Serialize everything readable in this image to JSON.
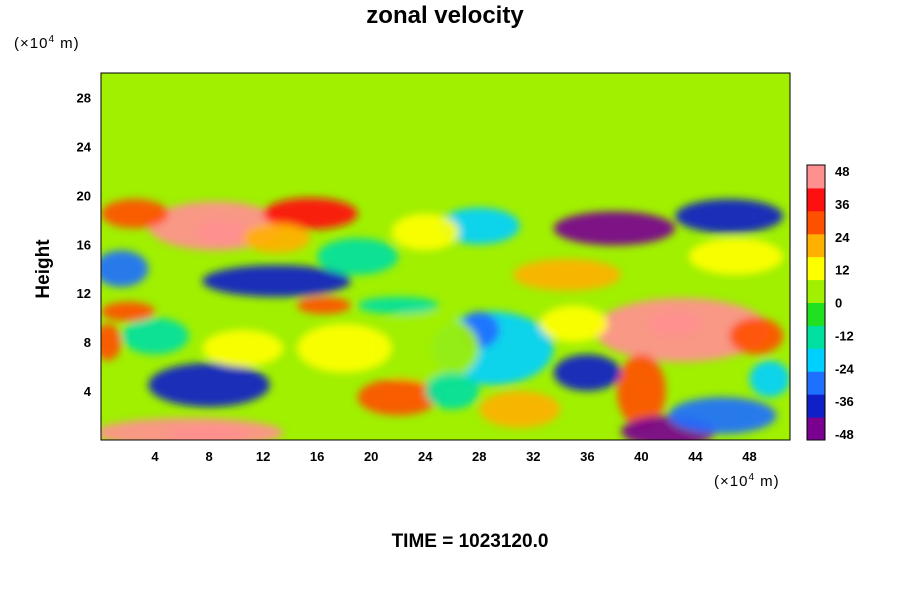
{
  "chart_data": {
    "type": "heatmap",
    "title": "zonal velocity",
    "xlabel": "",
    "ylabel": "Height",
    "x_unit": {
      "prefix": "(×10",
      "exp": "4",
      "suffix": " m)"
    },
    "y_unit": {
      "prefix": "(×10",
      "exp": "4",
      "suffix": " m)"
    },
    "xlim": [
      0,
      51
    ],
    "ylim": [
      0,
      30
    ],
    "x_ticks": [
      4,
      8,
      12,
      16,
      20,
      24,
      28,
      32,
      36,
      40,
      44,
      48
    ],
    "y_ticks": [
      4,
      8,
      12,
      16,
      20,
      24,
      28
    ],
    "colorbar": {
      "ticks": [
        48,
        36,
        24,
        12,
        0,
        -12,
        -24,
        -36,
        -48
      ],
      "range": [
        -50,
        50
      ],
      "colors": [
        "#7a0090",
        "#1020c8",
        "#2070ff",
        "#00d0ff",
        "#00e0a0",
        "#20e020",
        "#a0f000",
        "#ffff00",
        "#ffb000",
        "#ff5000",
        "#ff1010",
        "#ff9090"
      ]
    },
    "background_value": 2,
    "features": [
      {
        "x": 8.5,
        "y": 17.5,
        "rx": 5.0,
        "ry": 2.0,
        "value": 42
      },
      {
        "x": 15.5,
        "y": 18.5,
        "rx": 3.5,
        "ry": 1.3,
        "value": 36
      },
      {
        "x": 9.0,
        "y": 17.0,
        "rx": 2.0,
        "ry": 1.0,
        "value": 50
      },
      {
        "x": 2.5,
        "y": 18.5,
        "rx": 2.5,
        "ry": 1.2,
        "value": 26
      },
      {
        "x": 1.5,
        "y": 14.0,
        "rx": 2.0,
        "ry": 1.5,
        "value": -26
      },
      {
        "x": 13.0,
        "y": 13.0,
        "rx": 5.5,
        "ry": 1.3,
        "value": -38
      },
      {
        "x": 13.0,
        "y": 16.5,
        "rx": 2.5,
        "ry": 1.2,
        "value": 18
      },
      {
        "x": 19.0,
        "y": 15.0,
        "rx": 3.0,
        "ry": 1.5,
        "value": -14
      },
      {
        "x": 28.0,
        "y": 17.5,
        "rx": 3.0,
        "ry": 1.5,
        "value": -24
      },
      {
        "x": 24.0,
        "y": 17.0,
        "rx": 2.5,
        "ry": 1.5,
        "value": 10
      },
      {
        "x": 38.0,
        "y": 17.3,
        "rx": 4.5,
        "ry": 1.4,
        "value": -46
      },
      {
        "x": 46.5,
        "y": 18.3,
        "rx": 4.0,
        "ry": 1.4,
        "value": -40
      },
      {
        "x": 34.5,
        "y": 13.5,
        "rx": 4.0,
        "ry": 1.3,
        "value": 22
      },
      {
        "x": 47.0,
        "y": 15.0,
        "rx": 3.5,
        "ry": 1.5,
        "value": 14
      },
      {
        "x": 43.0,
        "y": 9.0,
        "rx": 6.5,
        "ry": 2.6,
        "value": 42
      },
      {
        "x": 42.5,
        "y": 9.5,
        "rx": 2.0,
        "ry": 1.0,
        "value": 50
      },
      {
        "x": 40.0,
        "y": 4.0,
        "rx": 1.8,
        "ry": 3.0,
        "value": 28
      },
      {
        "x": 36.0,
        "y": 5.5,
        "rx": 2.5,
        "ry": 1.5,
        "value": -38
      },
      {
        "x": 29.0,
        "y": 7.5,
        "rx": 4.5,
        "ry": 3.0,
        "value": -20
      },
      {
        "x": 28.0,
        "y": 9.0,
        "rx": 1.5,
        "ry": 1.5,
        "value": -30
      },
      {
        "x": 35.0,
        "y": 9.5,
        "rx": 2.5,
        "ry": 1.5,
        "value": 14
      },
      {
        "x": 24.0,
        "y": 7.5,
        "rx": 4.0,
        "ry": 3.0,
        "value": 8
      },
      {
        "x": 18.0,
        "y": 7.5,
        "rx": 3.5,
        "ry": 2.0,
        "value": 14
      },
      {
        "x": 22.0,
        "y": 3.5,
        "rx": 3.0,
        "ry": 1.5,
        "value": 26
      },
      {
        "x": 31.0,
        "y": 2.5,
        "rx": 3.0,
        "ry": 1.5,
        "value": 20
      },
      {
        "x": 8.0,
        "y": 4.5,
        "rx": 4.5,
        "ry": 1.8,
        "value": -34
      },
      {
        "x": 10.5,
        "y": 7.5,
        "rx": 3.0,
        "ry": 1.5,
        "value": 12
      },
      {
        "x": 4.0,
        "y": 8.5,
        "rx": 2.5,
        "ry": 1.5,
        "value": -10
      },
      {
        "x": 6.5,
        "y": 0.6,
        "rx": 7.0,
        "ry": 1.2,
        "value": 42
      },
      {
        "x": 8.0,
        "y": 0.5,
        "rx": 3.0,
        "ry": 0.7,
        "value": 50
      },
      {
        "x": 42.0,
        "y": 0.7,
        "rx": 3.5,
        "ry": 1.3,
        "value": -48
      },
      {
        "x": 46.0,
        "y": 2.0,
        "rx": 4.0,
        "ry": 1.5,
        "value": -30
      },
      {
        "x": 48.5,
        "y": 8.5,
        "rx": 2.0,
        "ry": 1.5,
        "value": 30
      },
      {
        "x": 2.0,
        "y": 10.5,
        "rx": 2.0,
        "ry": 0.8,
        "value": 30
      },
      {
        "x": 0.5,
        "y": 8.0,
        "rx": 1.0,
        "ry": 1.5,
        "value": 30
      },
      {
        "x": 16.5,
        "y": 11.0,
        "rx": 2.0,
        "ry": 0.7,
        "value": 26
      },
      {
        "x": 22.0,
        "y": 11.0,
        "rx": 3.0,
        "ry": 0.7,
        "value": -16
      },
      {
        "x": 26.0,
        "y": 4.0,
        "rx": 2.0,
        "ry": 1.5,
        "value": -12
      },
      {
        "x": 49.5,
        "y": 5.0,
        "rx": 1.5,
        "ry": 1.5,
        "value": -20
      }
    ]
  },
  "footer": {
    "time_label": "TIME = 1023120.0"
  }
}
